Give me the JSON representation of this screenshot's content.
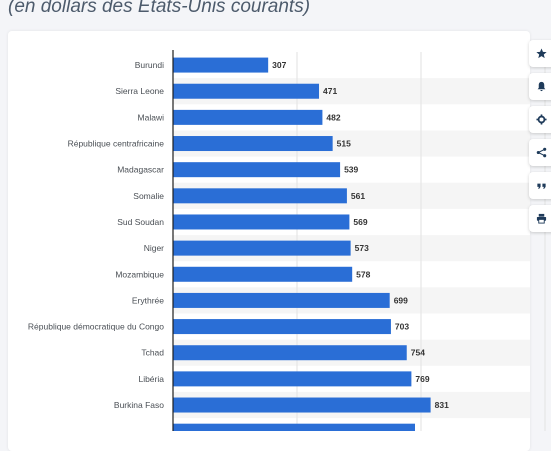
{
  "header": {
    "subtitle": "(en dollars des Etats-Unis courants)"
  },
  "toolbar": {
    "buttons": [
      "star-icon",
      "bell-icon",
      "gear-icon",
      "share-icon",
      "quote-icon",
      "print-icon"
    ]
  },
  "colors": {
    "bar": "#2a6ed6",
    "band": "#f5f5f5",
    "axis": "#1e1e1e",
    "grid": "#e2e2e2"
  },
  "chart_data": {
    "type": "bar",
    "orientation": "horizontal",
    "categories": [
      "Burundi",
      "Sierra Leone",
      "Malawi",
      "République centrafricaine",
      "Madagascar",
      "Somalie",
      "Sud Soudan",
      "Niger",
      "Mozambique",
      "Erythrée",
      "République démocratique du Congo",
      "Tchad",
      "Libéria",
      "Burkina Faso"
    ],
    "values": [
      307,
      471,
      482,
      515,
      539,
      561,
      569,
      573,
      578,
      699,
      703,
      754,
      769,
      831
    ],
    "xlim": [
      0,
      1800
    ],
    "grid": true
  }
}
